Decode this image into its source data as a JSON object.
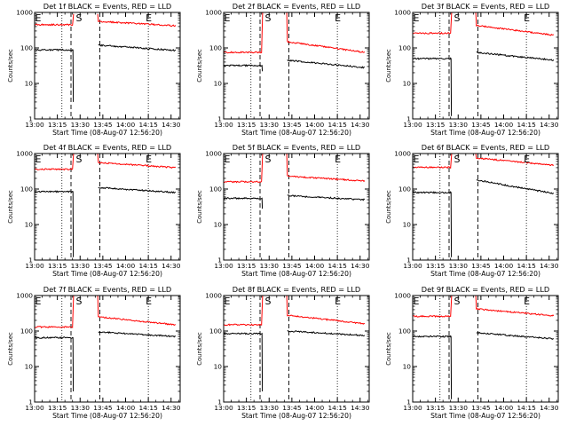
{
  "chart_data": [
    {
      "type": "line",
      "title": "Det 1f BLACK = Events, RED = LLD",
      "xlabel": "Start Time (08-Aug-07 12:56:20)",
      "ylabel": "Counts/sec",
      "yscale": "log",
      "ylim": [
        1,
        1000
      ],
      "yticks": [
        "1",
        "10",
        "100",
        "1000"
      ],
      "xticks": [
        "13:00",
        "13:15",
        "13:30",
        "13:45",
        "14:00",
        "14:15",
        "14:30"
      ],
      "markers": {
        "E_start": "13:00",
        "S": "13:29",
        "E_end": "14:15"
      },
      "vlines": {
        "dotted": [
          "13:18",
          "14:15"
        ],
        "dashed": [
          "13:24",
          "13:43"
        ]
      },
      "gap": [
        "13:25",
        "13:42"
      ],
      "series": [
        {
          "name": "LLD",
          "color": "#ff0000",
          "before": 450,
          "after": 560,
          "end": 420,
          "spike": 900
        },
        {
          "name": "Events",
          "color": "#000000",
          "before": 88,
          "after": 120,
          "end": 85,
          "dip": 3
        }
      ]
    },
    {
      "type": "line",
      "title": "Det 2f BLACK = Events, RED = LLD",
      "xlabel": "Start Time (08-Aug-07 12:56:20)",
      "ylabel": "Counts/sec",
      "yscale": "log",
      "ylim": [
        1,
        1000
      ],
      "yticks": [
        "1",
        "10",
        "100",
        "1000"
      ],
      "xticks": [
        "13:00",
        "13:15",
        "13:30",
        "13:45",
        "14:00",
        "14:15",
        "14:30"
      ],
      "markers": {
        "E_start": "13:00",
        "S": "13:29",
        "E_end": "14:15"
      },
      "vlines": {
        "dotted": [
          "13:18",
          "14:15"
        ],
        "dashed": [
          "13:24",
          "13:43"
        ]
      },
      "gap": [
        "13:25",
        "13:42"
      ],
      "series": [
        {
          "name": "LLD",
          "color": "#ff0000",
          "before": 75,
          "after": 150,
          "end": 75,
          "spike": 1000
        },
        {
          "name": "Events",
          "color": "#000000",
          "before": 32,
          "after": 45,
          "end": 28,
          "dip": 22
        }
      ]
    },
    {
      "type": "line",
      "title": "Det 3f BLACK = Events, RED = LLD",
      "xlabel": "Start Time (08-Aug-07 12:56:20)",
      "ylabel": "Counts/sec",
      "yscale": "log",
      "ylim": [
        1,
        1000
      ],
      "yticks": [
        "1",
        "10",
        "100",
        "1000"
      ],
      "xticks": [
        "13:00",
        "13:15",
        "13:30",
        "13:45",
        "14:00",
        "14:15",
        "14:30"
      ],
      "markers": {
        "E_start": "13:00",
        "S": "13:29",
        "E_end": "14:15"
      },
      "vlines": {
        "dotted": [
          "13:18",
          "14:15"
        ],
        "dashed": [
          "13:24",
          "13:43"
        ]
      },
      "gap": [
        "13:25",
        "13:42"
      ],
      "series": [
        {
          "name": "LLD",
          "color": "#ff0000",
          "before": 260,
          "after": 430,
          "end": 230,
          "spike": 1000
        },
        {
          "name": "Events",
          "color": "#000000",
          "before": 50,
          "after": 75,
          "end": 45,
          "dip": 1.2
        }
      ]
    },
    {
      "type": "line",
      "title": "Det 4f BLACK = Events, RED = LLD",
      "xlabel": "Start Time (08-Aug-07 12:56:20)",
      "ylabel": "Counts/sec",
      "yscale": "log",
      "ylim": [
        1,
        1000
      ],
      "yticks": [
        "1",
        "10",
        "100",
        "1000"
      ],
      "xticks": [
        "13:00",
        "13:15",
        "13:30",
        "13:45",
        "14:00",
        "14:15",
        "14:30"
      ],
      "markers": {
        "E_start": "13:00",
        "S": "13:29",
        "E_end": "14:15"
      },
      "vlines": {
        "dotted": [
          "13:18",
          "14:15"
        ],
        "dashed": [
          "13:24",
          "13:43"
        ]
      },
      "gap": [
        "13:25",
        "13:42"
      ],
      "series": [
        {
          "name": "LLD",
          "color": "#ff0000",
          "before": 360,
          "after": 560,
          "end": 400,
          "spike": 1000
        },
        {
          "name": "Events",
          "color": "#000000",
          "before": 85,
          "after": 110,
          "end": 80,
          "dip": 1.2
        }
      ]
    },
    {
      "type": "line",
      "title": "Det 5f BLACK = Events, RED = LLD",
      "xlabel": "Start Time (08-Aug-07 12:56:20)",
      "ylabel": "Counts/sec",
      "yscale": "log",
      "ylim": [
        1,
        1000
      ],
      "yticks": [
        "1",
        "10",
        "100",
        "1000"
      ],
      "xticks": [
        "13:00",
        "13:15",
        "13:30",
        "13:45",
        "14:00",
        "14:15",
        "14:30"
      ],
      "markers": {
        "E_start": "13:00",
        "S": "13:29",
        "E_end": "14:15"
      },
      "vlines": {
        "dotted": [
          "13:18",
          "14:15"
        ],
        "dashed": [
          "13:24",
          "13:43"
        ]
      },
      "gap": [
        "13:25",
        "13:42"
      ],
      "series": [
        {
          "name": "LLD",
          "color": "#ff0000",
          "before": 160,
          "after": 230,
          "end": 170,
          "spike": 1000
        },
        {
          "name": "Events",
          "color": "#000000",
          "before": 55,
          "after": 65,
          "end": 50,
          "dip": 28
        }
      ]
    },
    {
      "type": "line",
      "title": "Det 6f BLACK = Events, RED = LLD",
      "xlabel": "Start Time (08-Aug-07 12:56:20)",
      "ylabel": "Counts/sec",
      "yscale": "log",
      "ylim": [
        1,
        1000
      ],
      "yticks": [
        "1",
        "10",
        "100",
        "1000"
      ],
      "xticks": [
        "13:00",
        "13:15",
        "13:30",
        "13:45",
        "14:00",
        "14:15",
        "14:30"
      ],
      "markers": {
        "E_start": "13:00",
        "S": "13:29",
        "E_end": "14:15"
      },
      "vlines": {
        "dotted": [
          "13:18",
          "14:15"
        ],
        "dashed": [
          "13:24",
          "13:43"
        ]
      },
      "gap": [
        "13:25",
        "13:42"
      ],
      "series": [
        {
          "name": "LLD",
          "color": "#ff0000",
          "before": 410,
          "after": 750,
          "end": 470,
          "spike": 1000
        },
        {
          "name": "Events",
          "color": "#000000",
          "before": 80,
          "after": 180,
          "end": 75,
          "dip": 1.2
        }
      ]
    },
    {
      "type": "line",
      "title": "Det 7f BLACK = Events, RED = LLD",
      "xlabel": "Start Time (08-Aug-07 12:56:20)",
      "ylabel": "Counts/sec",
      "yscale": "log",
      "ylim": [
        1,
        1000
      ],
      "yticks": [
        "1",
        "10",
        "100",
        "1000"
      ],
      "xticks": [
        "13:00",
        "13:15",
        "13:30",
        "13:45",
        "14:00",
        "14:15",
        "14:30"
      ],
      "markers": {
        "E_start": "13:00",
        "S": "13:29",
        "E_end": "14:15"
      },
      "vlines": {
        "dotted": [
          "13:18",
          "14:15"
        ],
        "dashed": [
          "13:24",
          "13:43"
        ]
      },
      "gap": [
        "13:25",
        "13:42"
      ],
      "series": [
        {
          "name": "LLD",
          "color": "#ff0000",
          "before": 130,
          "after": 250,
          "end": 150,
          "spike": 1000
        },
        {
          "name": "Events",
          "color": "#000000",
          "before": 65,
          "after": 95,
          "end": 70,
          "dip": 2
        }
      ]
    },
    {
      "type": "line",
      "title": "Det 8f BLACK = Events, RED = LLD",
      "xlabel": "Start Time (08-Aug-07 12:56:20)",
      "ylabel": "Counts/sec",
      "yscale": "log",
      "ylim": [
        1,
        1000
      ],
      "yticks": [
        "1",
        "10",
        "100",
        "1000"
      ],
      "xticks": [
        "13:00",
        "13:15",
        "13:30",
        "13:45",
        "14:00",
        "14:15",
        "14:30"
      ],
      "markers": {
        "E_start": "13:00",
        "S": "13:29",
        "E_end": "14:15"
      },
      "vlines": {
        "dotted": [
          "13:18",
          "14:15"
        ],
        "dashed": [
          "13:24",
          "13:43"
        ]
      },
      "gap": [
        "13:25",
        "13:42"
      ],
      "series": [
        {
          "name": "LLD",
          "color": "#ff0000",
          "before": 150,
          "after": 280,
          "end": 160,
          "spike": 1000
        },
        {
          "name": "Events",
          "color": "#000000",
          "before": 85,
          "after": 100,
          "end": 75,
          "dip": 2
        }
      ]
    },
    {
      "type": "line",
      "title": "Det 9f BLACK = Events, RED = LLD",
      "xlabel": "Start Time (08-Aug-07 12:56:20)",
      "ylabel": "Counts/sec",
      "yscale": "log",
      "ylim": [
        1,
        1000
      ],
      "yticks": [
        "1",
        "10",
        "100",
        "1000"
      ],
      "xticks": [
        "13:00",
        "13:15",
        "13:30",
        "13:45",
        "14:00",
        "14:15",
        "14:30"
      ],
      "markers": {
        "E_start": "13:00",
        "S": "13:29",
        "E_end": "14:15"
      },
      "vlines": {
        "dotted": [
          "13:18",
          "14:15"
        ],
        "dashed": [
          "13:24",
          "13:43"
        ]
      },
      "gap": [
        "13:25",
        "13:42"
      ],
      "series": [
        {
          "name": "LLD",
          "color": "#ff0000",
          "before": 260,
          "after": 420,
          "end": 270,
          "spike": 1000
        },
        {
          "name": "Events",
          "color": "#000000",
          "before": 70,
          "after": 90,
          "end": 60,
          "dip": 1.2
        }
      ]
    }
  ]
}
